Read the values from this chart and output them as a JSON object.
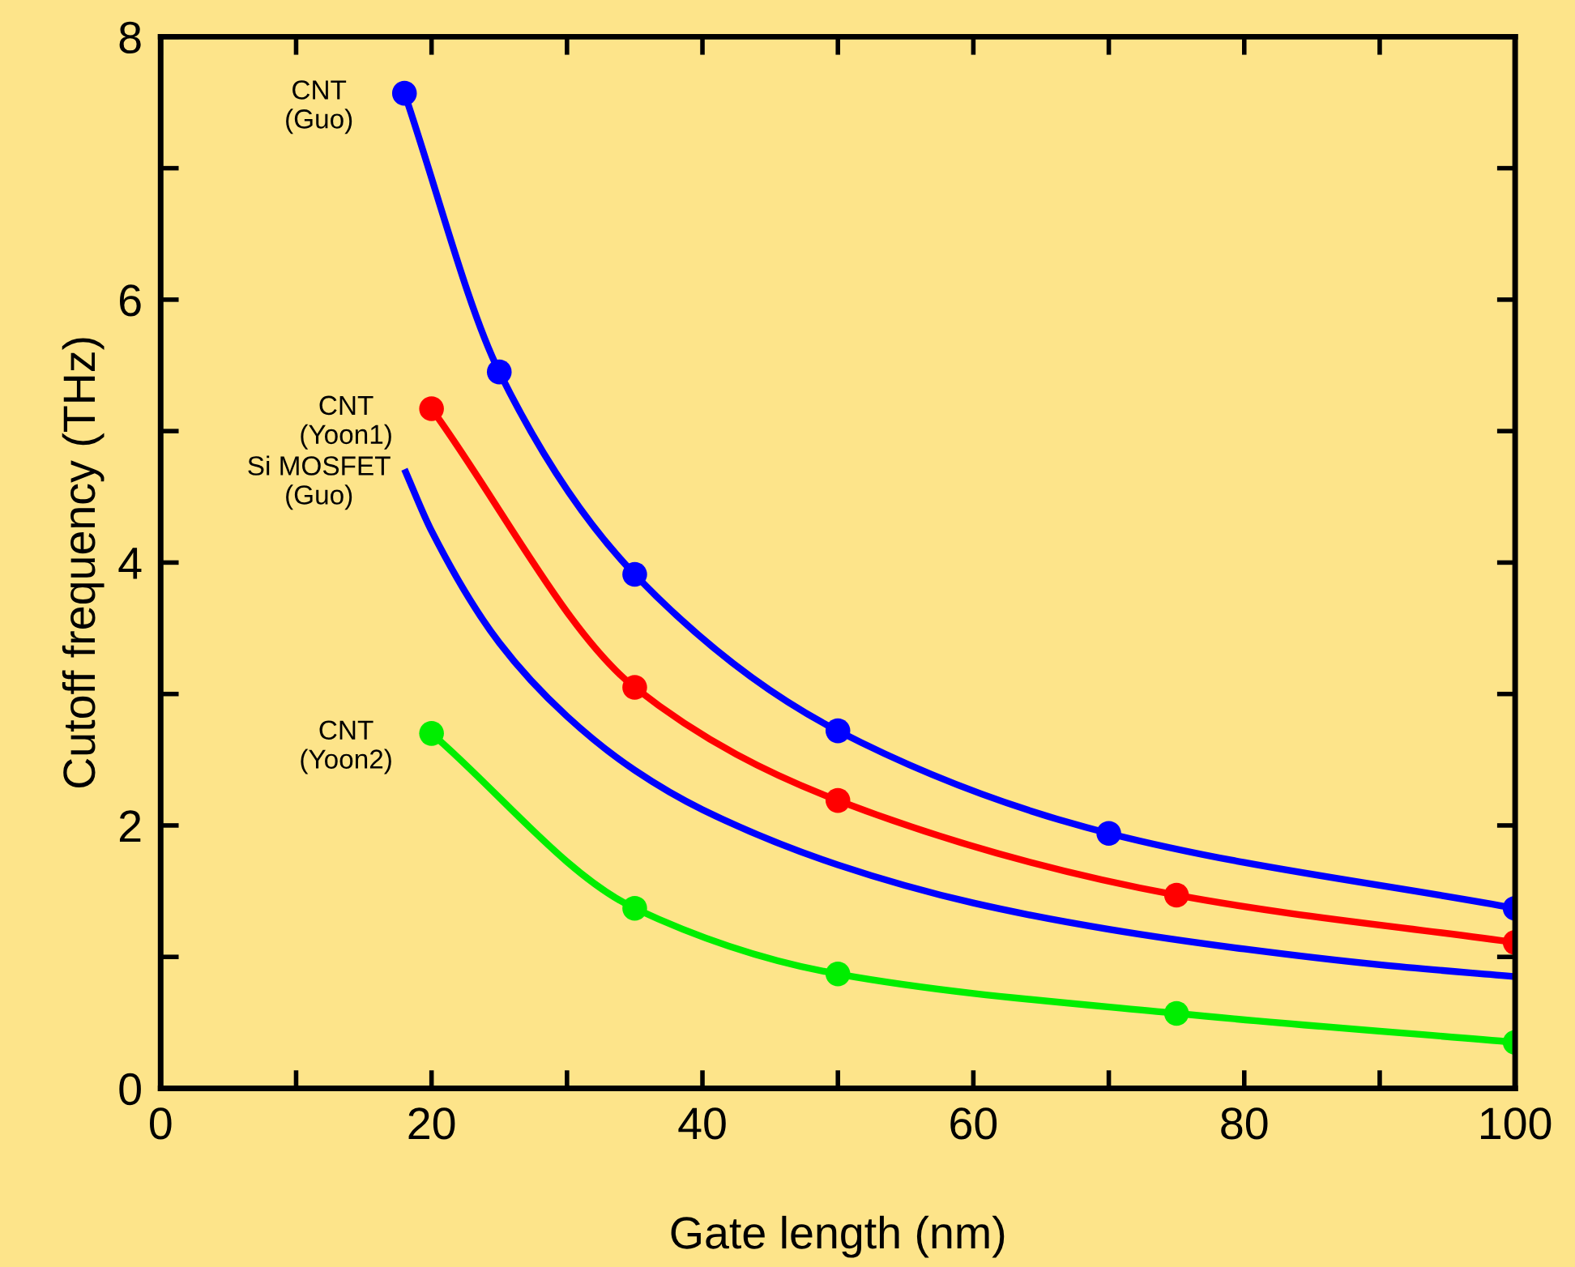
{
  "chart_data": {
    "type": "line",
    "xlabel": "Gate length (nm)",
    "ylabel": "Cutoff frequency (THz)",
    "xlim": [
      0,
      100
    ],
    "ylim": [
      0,
      8
    ],
    "xticks": [
      0,
      {
        "value": 10,
        "label": null
      },
      20,
      {
        "value": 30,
        "label": null
      },
      40,
      {
        "value": 50,
        "label": null
      },
      60,
      {
        "value": 70,
        "label": null
      },
      80,
      {
        "value": 90,
        "label": null
      },
      100
    ],
    "yticks": [
      0,
      {
        "value": 1,
        "label": null
      },
      2,
      {
        "value": 3,
        "label": null
      },
      4,
      {
        "value": 5,
        "label": null
      },
      6,
      {
        "value": 7,
        "label": null
      },
      8
    ],
    "grid": false,
    "legend": false,
    "series": [
      {
        "name": "CNT\n(Guo)",
        "color": "#0000ff",
        "marker": "circle",
        "x": [
          18,
          25,
          35,
          50,
          70,
          100
        ],
        "values": [
          7.57,
          5.45,
          3.91,
          2.72,
          1.94,
          1.37
        ]
      },
      {
        "name": "CNT\n(Yoon1)",
        "color": "#ff0000",
        "marker": "circle",
        "x": [
          20,
          35,
          50,
          75,
          100
        ],
        "values": [
          5.17,
          3.05,
          2.19,
          1.47,
          1.11
        ]
      },
      {
        "name": "Si MOSFET\n(Guo)",
        "color": "#0000ff",
        "marker": "none",
        "x": [
          18,
          20,
          25,
          30,
          35,
          40,
          50,
          60,
          70,
          80,
          90,
          100
        ],
        "values": [
          4.71,
          4.24,
          3.39,
          2.83,
          2.42,
          2.12,
          1.7,
          1.41,
          1.21,
          1.06,
          0.94,
          0.85
        ]
      },
      {
        "name": "CNT\n(Yoon2)",
        "color": "#00ee00",
        "marker": "circle",
        "x": [
          20,
          35,
          50,
          75,
          100
        ],
        "values": [
          2.7,
          1.37,
          0.87,
          0.57,
          0.35
        ]
      }
    ]
  }
}
